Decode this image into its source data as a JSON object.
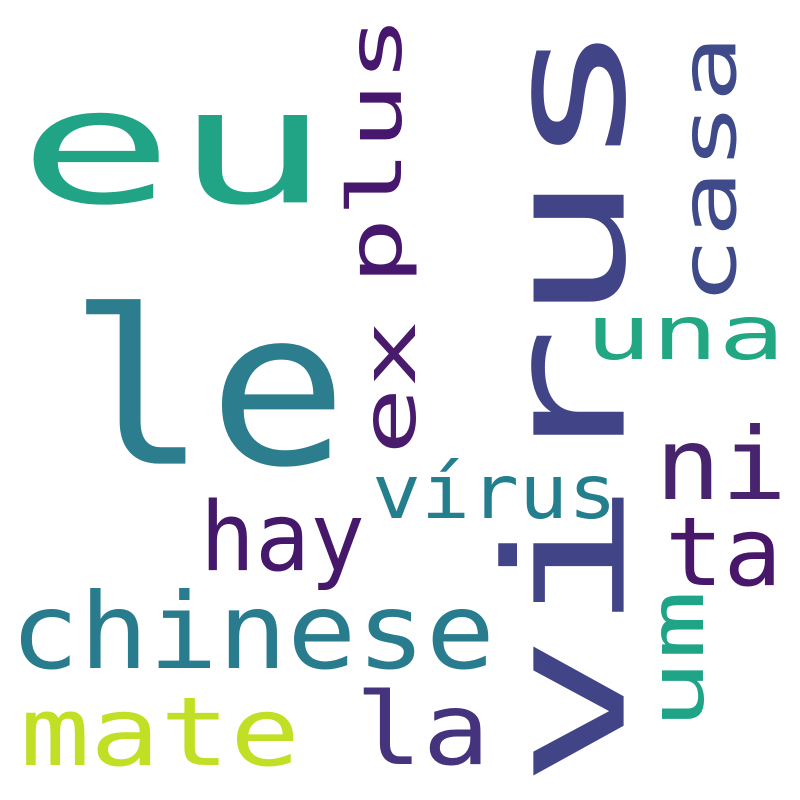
{
  "words": [
    {
      "text": "eu",
      "color": "#21a385",
      "orientation": "horizontal"
    },
    {
      "text": "le",
      "color": "#2c7d8e",
      "orientation": "horizontal"
    },
    {
      "text": "virus",
      "color": "#414487",
      "orientation": "vertical"
    },
    {
      "text": "plus",
      "color": "#46176c",
      "orientation": "vertical"
    },
    {
      "text": "ex",
      "color": "#481b6d",
      "orientation": "vertical"
    },
    {
      "text": "casa",
      "color": "#3e4a89",
      "orientation": "vertical"
    },
    {
      "text": "una",
      "color": "#22a783",
      "orientation": "horizontal"
    },
    {
      "text": "ni",
      "color": "#47246d",
      "orientation": "horizontal"
    },
    {
      "text": "vírus",
      "color": "#237e8d",
      "orientation": "horizontal"
    },
    {
      "text": "hay",
      "color": "#45186b",
      "orientation": "horizontal"
    },
    {
      "text": "ta",
      "color": "#481769",
      "orientation": "horizontal"
    },
    {
      "text": "chinese",
      "color": "#297b8e",
      "orientation": "horizontal"
    },
    {
      "text": "um",
      "color": "#20a487",
      "orientation": "vertical"
    },
    {
      "text": "mate",
      "color": "#c1df24",
      "orientation": "horizontal"
    },
    {
      "text": "la",
      "color": "#45337d",
      "orientation": "horizontal"
    }
  ]
}
